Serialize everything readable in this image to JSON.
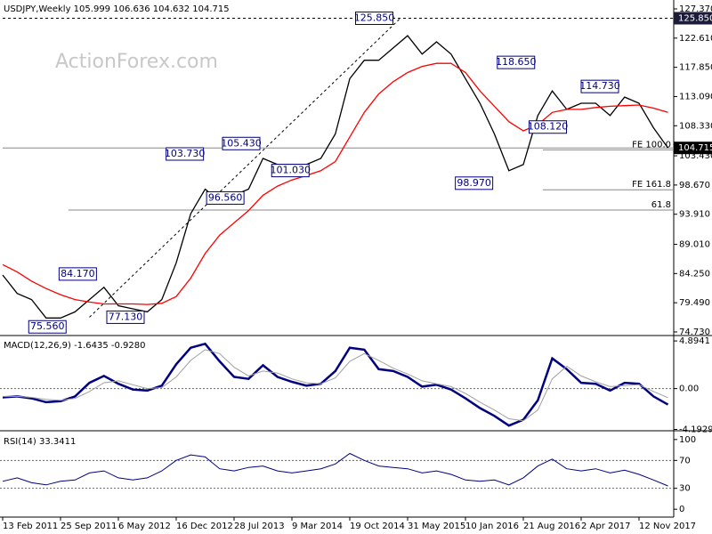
{
  "watermark": "ActionForex.com",
  "chart_data": [
    {
      "type": "line",
      "title": "USDJPY,Weekly 105.999 106.636 104.632 104.715",
      "xlim": [
        0,
        46.4
      ],
      "ylim": [
        74.29,
        128.82
      ],
      "yticks": [
        {
          "value": 127.37,
          "label": "127.370"
        },
        {
          "value": 122.61,
          "label": "122.610"
        },
        {
          "value": 117.85,
          "label": "117.850"
        },
        {
          "value": 113.09,
          "label": "113.090"
        },
        {
          "value": 108.33,
          "label": "108.330"
        },
        {
          "value": 103.43,
          "label": "103.430"
        },
        {
          "value": 98.67,
          "label": "98.670"
        },
        {
          "value": 93.91,
          "label": "93.910"
        },
        {
          "value": 89.01,
          "label": "89.010"
        },
        {
          "value": 84.25,
          "label": "84.250"
        },
        {
          "value": 79.49,
          "label": "79.490"
        },
        {
          "value": 74.73,
          "label": "74.730"
        }
      ],
      "series": [
        {
          "color": "#000000",
          "values": [
            84,
            81,
            80,
            77,
            77,
            78,
            80,
            82,
            79,
            78.5,
            78,
            80,
            86,
            94,
            98,
            96,
            97,
            98,
            103,
            102,
            102,
            102,
            103,
            107,
            116,
            119,
            119,
            121,
            123,
            120,
            122,
            120,
            116,
            112,
            107,
            101,
            102,
            110,
            114,
            111,
            112,
            112,
            110,
            113,
            112,
            108,
            104.7
          ]
        },
        {
          "color": "#ff0000",
          "values": [
            85.7,
            84.5,
            83,
            81.8,
            80.8,
            80,
            79.6,
            79.3,
            79.3,
            79.3,
            79.2,
            79.4,
            80.5,
            83.5,
            87.5,
            90.5,
            92.5,
            94.5,
            97,
            98.5,
            99.5,
            100.2,
            101,
            102.5,
            106.5,
            110.5,
            113.5,
            115.5,
            117,
            118,
            118.5,
            118.5,
            117,
            114,
            111.5,
            109,
            107.5,
            108.5,
            110.5,
            111,
            111,
            111.3,
            111.5,
            111.6,
            111.7,
            111.2,
            110.5
          ]
        }
      ],
      "price_markers": [
        {
          "value": 125.85,
          "label": "125.850"
        },
        {
          "value": 104.715,
          "label": "104.715"
        }
      ],
      "hlines": [
        {
          "value": 125.85,
          "from": 0,
          "dash": true
        },
        {
          "value": 104.715,
          "from": 0
        },
        {
          "value": 104.4,
          "from": 37.35,
          "label": "FE 100.0"
        },
        {
          "value": 97.9,
          "from": 37.35,
          "label": "FE 161.8"
        },
        {
          "value": 94.6,
          "from": 4.55,
          "label": "61.8"
        }
      ],
      "trendline": {
        "x": [
          6,
          27.5
        ],
        "y": [
          77.13,
          125.85
        ]
      },
      "annotations": [
        {
          "x": 24.4,
          "value": 125.85,
          "label": "125.850"
        },
        {
          "x": 34.2,
          "value": 118.65,
          "label": "118.650"
        },
        {
          "x": 40,
          "value": 114.73,
          "label": "114.730"
        },
        {
          "x": 36.4,
          "value": 108.12,
          "label": "108.120"
        },
        {
          "x": 15.2,
          "value": 105.43,
          "label": "105.430"
        },
        {
          "x": 11.3,
          "value": 103.73,
          "label": "103.730"
        },
        {
          "x": 18.6,
          "value": 101.03,
          "label": "101.030"
        },
        {
          "x": 31.3,
          "value": 98.97,
          "label": "98.970"
        },
        {
          "x": 14.1,
          "value": 96.56,
          "label": "96.560"
        },
        {
          "x": 3.9,
          "value": 84.17,
          "label": "84.170"
        },
        {
          "x": 7.2,
          "value": 77.13,
          "label": "77.130"
        },
        {
          "x": 1.8,
          "value": 75.56,
          "label": "75.560"
        }
      ]
    },
    {
      "type": "line",
      "title": "MACD(12,26,9) -1.6435 -0.9280",
      "xlim": [
        0,
        46.4
      ],
      "ylim": [
        -4.24,
        5.36
      ],
      "yticks": [
        4.8941,
        {
          "value": 0,
          "label": "0.00"
        },
        -4.1929
      ],
      "levels": [
        0
      ],
      "series": [
        {
          "color": "#000080",
          "width": 2.5,
          "values": [
            -0.9,
            -0.8,
            -1.0,
            -1.4,
            -1.3,
            -0.8,
            0.6,
            1.3,
            0.5,
            -0.1,
            -0.2,
            0.3,
            2.5,
            4.2,
            4.6,
            2.8,
            1.2,
            1.0,
            2.4,
            1.2,
            0.7,
            0.3,
            0.5,
            1.8,
            4.2,
            4.0,
            2.0,
            1.8,
            1.2,
            0.2,
            0.4,
            -0.1,
            -1.0,
            -2.0,
            -2.8,
            -3.8,
            -3.2,
            -1.2,
            3.1,
            2.0,
            0.6,
            0.5,
            -0.2,
            0.6,
            0.5,
            -0.8,
            -1.6435
          ]
        },
        {
          "color": "#a0a0a0",
          "width": 1,
          "values": [
            -0.8,
            -0.8,
            -0.9,
            -1.1,
            -1.2,
            -1.0,
            -0.3,
            0.6,
            0.8,
            0.4,
            0.0,
            0.1,
            1.2,
            2.9,
            4.0,
            3.6,
            2.2,
            1.3,
            1.8,
            1.6,
            1.0,
            0.6,
            0.5,
            1.1,
            2.8,
            3.6,
            2.9,
            2.1,
            1.5,
            0.8,
            0.5,
            0.2,
            -0.5,
            -1.4,
            -2.2,
            -3.1,
            -3.3,
            -2.2,
            1.0,
            2.3,
            1.3,
            0.7,
            0.2,
            0.3,
            0.4,
            -0.3,
            -0.928
          ]
        }
      ]
    },
    {
      "type": "line",
      "title": "RSI(14) 33.3411",
      "xlim": [
        0,
        46.4
      ],
      "ylim": [
        -10,
        110
      ],
      "yticks": [
        100,
        70,
        30,
        0
      ],
      "levels": [
        70,
        30
      ],
      "series": [
        {
          "color": "#000080",
          "width": 1,
          "values": [
            40,
            45,
            38,
            35,
            40,
            42,
            52,
            55,
            45,
            42,
            45,
            55,
            70,
            78,
            75,
            58,
            55,
            60,
            62,
            55,
            52,
            55,
            58,
            65,
            80,
            70,
            62,
            60,
            58,
            52,
            55,
            50,
            42,
            40,
            42,
            35,
            45,
            62,
            72,
            58,
            55,
            58,
            52,
            56,
            50,
            42,
            33.3411
          ]
        }
      ],
      "xticks": [
        {
          "value": 0,
          "label": "13 Feb 2011"
        },
        {
          "value": 4,
          "label": "25 Sep 2011"
        },
        {
          "value": 8,
          "label": "6 May 2012"
        },
        {
          "value": 12,
          "label": "16 Dec 2012"
        },
        {
          "value": 16,
          "label": "28 Jul 2013"
        },
        {
          "value": 20,
          "label": "9 Mar 2014"
        },
        {
          "value": 24,
          "label": "19 Oct 2014"
        },
        {
          "value": 28,
          "label": "31 May 2015"
        },
        {
          "value": 32,
          "label": "10 Jan 2016"
        },
        {
          "value": 36,
          "label": "21 Aug 2016"
        },
        {
          "value": 40,
          "label": "2 Apr 2017"
        },
        {
          "value": 44,
          "label": "12 Nov 2017"
        }
      ]
    }
  ]
}
